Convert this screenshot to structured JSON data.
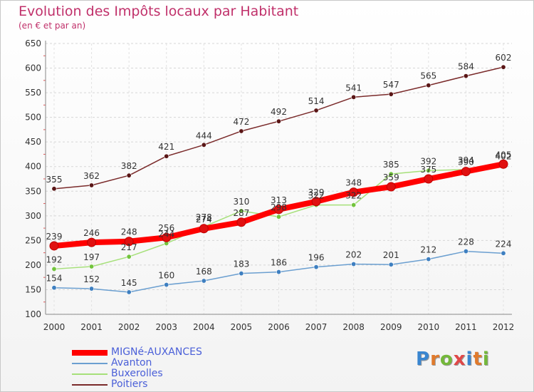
{
  "title": "Evolution des Impôts locaux par Habitant",
  "subtitle": "(en € et par an)",
  "logo": {
    "text": "Proxiti",
    "letter_colors": [
      "#3a86d0",
      "#e07a2c",
      "#74b83a",
      "#e04848",
      "#3a86d0",
      "#e07a2c",
      "#74b83a"
    ]
  },
  "chart_data": {
    "type": "line",
    "title": "Evolution des Impôts locaux par Habitant",
    "subtitle": "(en € et par an)",
    "categories": [
      "2000",
      "2001",
      "2002",
      "2003",
      "2004",
      "2005",
      "2006",
      "2007",
      "2008",
      "2009",
      "2010",
      "2011",
      "2012"
    ],
    "ylim": [
      100,
      650
    ],
    "yticks": [
      100,
      150,
      200,
      250,
      300,
      350,
      400,
      450,
      500,
      550,
      600,
      650
    ],
    "grid": "horizontal dashed",
    "legend_position": "bottom-left",
    "series": [
      {
        "name": "MIGNé-AUXANCES",
        "color": "#ff0000",
        "marker": "#e01010",
        "values": [
          239,
          246,
          248,
          256,
          274,
          287,
          313,
          329,
          348,
          359,
          375,
          390,
          405
        ]
      },
      {
        "name": "Avanton",
        "color": "#6b9fd0",
        "marker": "#3e7fc0",
        "values": [
          154,
          152,
          145,
          160,
          168,
          183,
          186,
          196,
          202,
          201,
          212,
          228,
          224
        ]
      },
      {
        "name": "Buxerolles",
        "color": "#a6e07a",
        "marker": "#72c43c",
        "values": [
          192,
          197,
          217,
          244,
          278,
          310,
          298,
          322,
          322,
          385,
          392,
          394,
          402
        ]
      },
      {
        "name": "Poitiers",
        "color": "#7a2a2a",
        "marker": "#5a1616",
        "values": [
          355,
          362,
          382,
          421,
          444,
          472,
          492,
          514,
          541,
          547,
          565,
          584,
          602
        ]
      }
    ]
  }
}
